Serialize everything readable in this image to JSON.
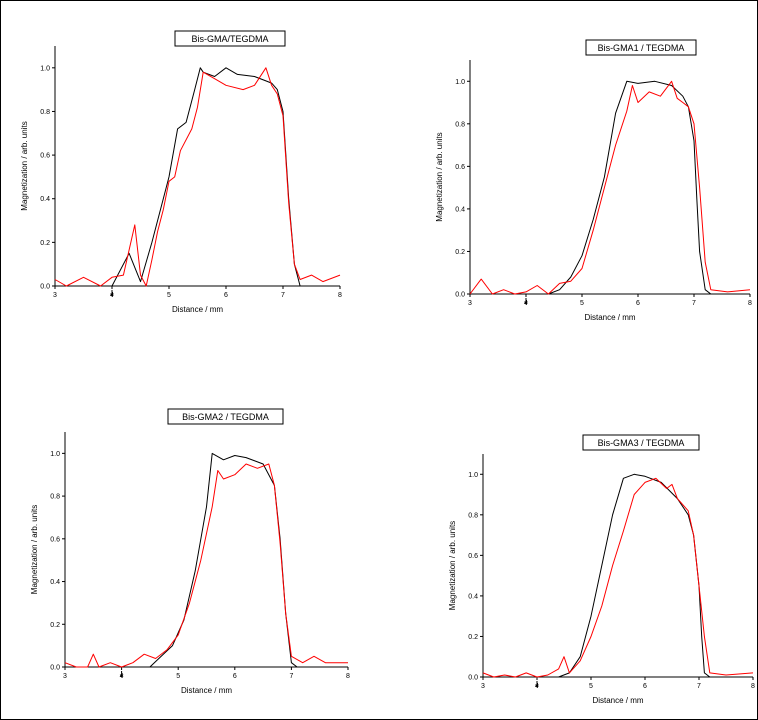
{
  "chart_data": [
    {
      "type": "line",
      "title": "Bis-GMA/TEGDMA",
      "xlabel": "Distance / mm",
      "ylabel": "Magnetization / arb. units",
      "xlim": [
        3,
        8
      ],
      "ylim": [
        0,
        1.1
      ],
      "xticks": [
        "3",
        "4",
        "5",
        "6",
        "7",
        "8"
      ],
      "yticks": [
        "0.0",
        "0.2",
        "0.4",
        "0.6",
        "0.8",
        "1.0"
      ],
      "x_marker": 4.0,
      "colors": {
        "series1": "#000000",
        "series2": "#ff0000"
      },
      "series": [
        {
          "x": [
            3.0,
            3.5,
            4.0,
            4.3,
            4.5,
            4.7,
            4.9,
            5.0,
            5.15,
            5.3,
            5.45,
            5.55,
            5.6,
            5.8,
            6.0,
            6.2,
            6.5,
            6.7,
            6.8,
            6.9,
            7.0,
            7.1,
            7.2,
            7.3,
            7.6,
            8.0
          ],
          "y": [
            0.0,
            0.0,
            0.0,
            0.15,
            0.02,
            0.2,
            0.4,
            0.5,
            0.72,
            0.75,
            0.9,
            1.0,
            0.98,
            0.96,
            1.0,
            0.97,
            0.96,
            0.94,
            0.93,
            0.9,
            0.8,
            0.4,
            0.1,
            0.0,
            0.0,
            0.0
          ]
        },
        {
          "x": [
            3.0,
            3.2,
            3.5,
            3.8,
            4.0,
            4.2,
            4.4,
            4.5,
            4.6,
            4.7,
            4.8,
            4.9,
            5.0,
            5.1,
            5.2,
            5.4,
            5.5,
            5.6,
            5.8,
            6.0,
            6.3,
            6.5,
            6.7,
            6.8,
            6.9,
            7.0,
            7.1,
            7.2,
            7.3,
            7.5,
            7.7,
            8.0
          ],
          "y": [
            0.03,
            0.0,
            0.04,
            0.0,
            0.04,
            0.05,
            0.28,
            0.05,
            0.0,
            0.12,
            0.25,
            0.35,
            0.48,
            0.5,
            0.62,
            0.72,
            0.82,
            0.98,
            0.95,
            0.92,
            0.9,
            0.92,
            1.0,
            0.92,
            0.88,
            0.78,
            0.38,
            0.1,
            0.03,
            0.05,
            0.02,
            0.05
          ]
        }
      ]
    },
    {
      "type": "line",
      "title": "Bis-GMA1 / TEGDMA",
      "xlabel": "Distance / mm",
      "ylabel": "Magnetization / arb. units",
      "xlim": [
        3,
        8
      ],
      "ylim": [
        0,
        1.1
      ],
      "xticks": [
        "3",
        "4",
        "5",
        "6",
        "7",
        "8"
      ],
      "yticks": [
        "0.0",
        "0.2",
        "0.4",
        "0.6",
        "0.8",
        "1.0"
      ],
      "x_marker": 4.0,
      "colors": {
        "series1": "#000000",
        "series2": "#ff0000"
      },
      "series": [
        {
          "x": [
            3.0,
            4.4,
            4.6,
            4.8,
            5.0,
            5.2,
            5.4,
            5.6,
            5.8,
            6.0,
            6.3,
            6.6,
            6.8,
            6.9,
            7.0,
            7.05,
            7.1,
            7.2,
            7.3,
            8.0
          ],
          "y": [
            0.0,
            0.0,
            0.02,
            0.08,
            0.18,
            0.35,
            0.55,
            0.85,
            1.0,
            0.99,
            1.0,
            0.98,
            0.93,
            0.88,
            0.72,
            0.45,
            0.2,
            0.02,
            0.0,
            0.0
          ]
        },
        {
          "x": [
            3.0,
            3.2,
            3.4,
            3.6,
            3.8,
            4.0,
            4.2,
            4.4,
            4.6,
            4.8,
            5.0,
            5.2,
            5.4,
            5.6,
            5.8,
            5.9,
            6.0,
            6.2,
            6.4,
            6.6,
            6.7,
            6.8,
            6.9,
            7.0,
            7.1,
            7.2,
            7.3,
            7.6,
            8.0
          ],
          "y": [
            0.0,
            0.07,
            0.0,
            0.02,
            0.0,
            0.01,
            0.04,
            0.0,
            0.05,
            0.06,
            0.12,
            0.3,
            0.5,
            0.7,
            0.86,
            0.98,
            0.9,
            0.95,
            0.93,
            1.0,
            0.92,
            0.9,
            0.88,
            0.8,
            0.5,
            0.15,
            0.02,
            0.01,
            0.02
          ]
        }
      ]
    },
    {
      "type": "line",
      "title": "Bis-GMA2 / TEGDMA",
      "xlabel": "Distance / mm",
      "ylabel": "Magnetization / arb. units",
      "xlim": [
        3,
        8
      ],
      "ylim": [
        0,
        1.1
      ],
      "xticks": [
        "3",
        "4",
        "5",
        "6",
        "7",
        "8"
      ],
      "yticks": [
        "0.0",
        "0.2",
        "0.4",
        "0.6",
        "0.8",
        "1.0"
      ],
      "x_marker": 4.0,
      "colors": {
        "series1": "#000000",
        "series2": "#ff0000"
      },
      "series": [
        {
          "x": [
            3.0,
            4.5,
            4.7,
            4.9,
            5.1,
            5.3,
            5.5,
            5.6,
            5.8,
            6.0,
            6.2,
            6.5,
            6.7,
            6.8,
            6.9,
            7.0,
            7.1,
            8.0
          ],
          "y": [
            0.0,
            0.0,
            0.05,
            0.1,
            0.22,
            0.45,
            0.75,
            1.0,
            0.97,
            0.99,
            0.98,
            0.95,
            0.85,
            0.6,
            0.25,
            0.02,
            0.0,
            0.0
          ]
        },
        {
          "x": [
            3.0,
            3.2,
            3.4,
            3.5,
            3.6,
            3.8,
            4.0,
            4.2,
            4.4,
            4.6,
            4.8,
            5.0,
            5.2,
            5.4,
            5.6,
            5.7,
            5.8,
            6.0,
            6.2,
            6.4,
            6.6,
            6.7,
            6.8,
            6.9,
            7.0,
            7.2,
            7.4,
            7.6,
            8.0
          ],
          "y": [
            0.02,
            0.0,
            0.0,
            0.06,
            0.0,
            0.02,
            0.0,
            0.02,
            0.06,
            0.04,
            0.08,
            0.15,
            0.3,
            0.5,
            0.75,
            0.92,
            0.88,
            0.9,
            0.95,
            0.93,
            0.95,
            0.85,
            0.58,
            0.25,
            0.05,
            0.02,
            0.05,
            0.02,
            0.02
          ]
        }
      ]
    },
    {
      "type": "line",
      "title": "Bis-GMA3 / TEGDMA",
      "xlabel": "Distance / mm",
      "ylabel": "Magnetization / arb. units",
      "xlim": [
        3,
        8
      ],
      "ylim": [
        0,
        1.1
      ],
      "xticks": [
        "3",
        "4",
        "5",
        "6",
        "7",
        "8"
      ],
      "yticks": [
        "0.0",
        "0.2",
        "0.4",
        "0.6",
        "0.8",
        "1.0"
      ],
      "x_marker": 4.0,
      "colors": {
        "series1": "#000000",
        "series2": "#ff0000"
      },
      "series": [
        {
          "x": [
            3.0,
            4.4,
            4.6,
            4.8,
            5.0,
            5.2,
            5.4,
            5.6,
            5.8,
            6.0,
            6.3,
            6.6,
            6.8,
            6.9,
            7.0,
            7.05,
            7.1,
            7.2,
            8.0
          ],
          "y": [
            0.0,
            0.0,
            0.02,
            0.1,
            0.3,
            0.55,
            0.8,
            0.98,
            1.0,
            0.99,
            0.96,
            0.88,
            0.8,
            0.7,
            0.45,
            0.2,
            0.02,
            0.0,
            0.0
          ]
        },
        {
          "x": [
            3.0,
            3.2,
            3.4,
            3.6,
            3.8,
            4.0,
            4.2,
            4.4,
            4.5,
            4.6,
            4.8,
            5.0,
            5.2,
            5.4,
            5.6,
            5.8,
            6.0,
            6.2,
            6.4,
            6.5,
            6.6,
            6.8,
            6.9,
            7.0,
            7.1,
            7.2,
            7.5,
            8.0
          ],
          "y": [
            0.02,
            0.0,
            0.01,
            0.0,
            0.02,
            0.0,
            0.01,
            0.04,
            0.1,
            0.02,
            0.08,
            0.2,
            0.35,
            0.55,
            0.72,
            0.9,
            0.96,
            0.98,
            0.93,
            0.95,
            0.88,
            0.82,
            0.7,
            0.45,
            0.2,
            0.02,
            0.01,
            0.02
          ]
        }
      ]
    }
  ]
}
